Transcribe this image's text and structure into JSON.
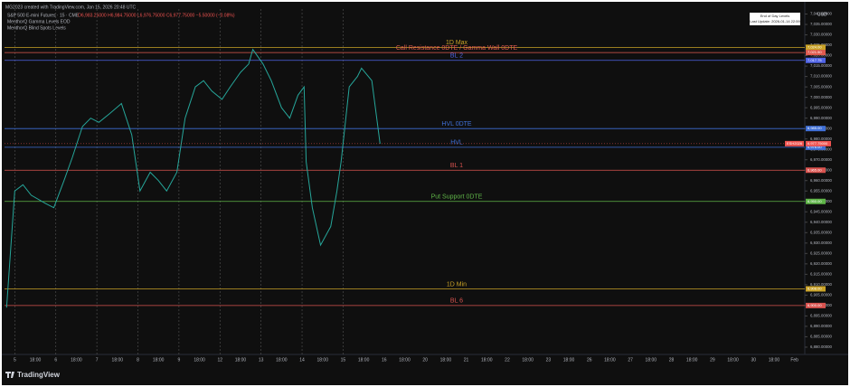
{
  "header": {
    "credit": "MG2023 created with TradingView.com, Jan 15, 2026 20:48 UTC",
    "symbol_line": "S&P 500 E-mini Futures · 15 · CME",
    "ohlc": "O6,983.25000 H6,984.75000 L6,976.75000 C6,977.75000 −5.50000 (−0.08%)",
    "indicators": [
      "MenthorQ Gamma Levels EOD",
      "MenthorQ Blind Spots Levels"
    ]
  },
  "info_box": {
    "title": "End of Day Levels",
    "update": "Last Update: 2026-01-14 22:59"
  },
  "footer": {
    "brand": "TradingView"
  },
  "chart_data": {
    "type": "line",
    "currency": "USD",
    "series": [
      {
        "name": "ESH2026",
        "color": "#26a69a",
        "x": [
          -0.4,
          0,
          0.4,
          0.8,
          1.5,
          1.9,
          2.4,
          2.8,
          3.3,
          3.7,
          4.1,
          4.6,
          5.2,
          5.7,
          6.1,
          6.6,
          7.0,
          7.4,
          7.9,
          8.3,
          8.8,
          9.2,
          9.6,
          10.1,
          10.5,
          11.0,
          11.4,
          11.6,
          12.1,
          12.5,
          13.0,
          13.4,
          13.8,
          14.1,
          14.2,
          14.5,
          14.9,
          15.4,
          15.7,
          15.9,
          16.3,
          16.7,
          16.9,
          17.4,
          17.8
        ],
        "values": [
          6899,
          6955,
          6958,
          6953,
          6949,
          6947,
          6960,
          6971,
          6986,
          6990,
          6988,
          6992,
          6997,
          6982,
          6955,
          6964,
          6960,
          6955,
          6964,
          6990,
          7005,
          7008,
          7003,
          6999,
          7005,
          7012,
          7016,
          7023,
          7016,
          7008,
          6995,
          6990,
          7001,
          7005,
          6969,
          6947,
          6929,
          6938,
          6955,
          6969,
          7005,
          7010,
          7014,
          7008,
          6977.75
        ]
      }
    ],
    "last_price": {
      "symbol": "ESH2026",
      "value": 6977.75,
      "label": "6,977.75000"
    },
    "levels": [
      {
        "name": "1D Max",
        "value": 7024,
        "label": "7,024.00",
        "color": "#c9a227"
      },
      {
        "name": "Call Resistance 0DTE / Gamma Wall 0DTE",
        "value": 7021.5,
        "label": "7,021.50",
        "color": "#e05a4f"
      },
      {
        "name": "BL 2",
        "value": 7017.75,
        "label": "7,017.75",
        "color": "#4f63e6"
      },
      {
        "name": "HVL 0DTE",
        "value": 6985,
        "label": "6,985.00",
        "color": "#3f6fd6"
      },
      {
        "name": "HVL",
        "value": 6976,
        "label": "6,976.00",
        "color": "#3f6fd6"
      },
      {
        "name": "BL 1",
        "value": 6965,
        "label": "6,965.00",
        "color": "#d9534f"
      },
      {
        "name": "Put Support 0DTE",
        "value": 6950,
        "label": "6,950.00",
        "color": "#5fb548"
      },
      {
        "name": "1D Min",
        "value": 6908,
        "label": "6,908.00",
        "color": "#c9a227"
      },
      {
        "name": "BL 6",
        "value": 6900,
        "label": "6,900.00",
        "color": "#d9534f"
      }
    ],
    "xlim": [
      -0.5,
      38.5
    ],
    "xticks": [
      {
        "value": 0,
        "label": "5"
      },
      {
        "value": 1,
        "label": "18:00"
      },
      {
        "value": 2,
        "label": "6"
      },
      {
        "value": 3,
        "label": "18:00"
      },
      {
        "value": 4,
        "label": "7"
      },
      {
        "value": 5,
        "label": "18:00"
      },
      {
        "value": 6,
        "label": "8"
      },
      {
        "value": 7,
        "label": "18:00"
      },
      {
        "value": 8,
        "label": "9"
      },
      {
        "value": 9,
        "label": "18:00"
      },
      {
        "value": 10,
        "label": "12"
      },
      {
        "value": 11,
        "label": "18:00"
      },
      {
        "value": 12,
        "label": "13"
      },
      {
        "value": 13,
        "label": "18:00"
      },
      {
        "value": 14,
        "label": "14"
      },
      {
        "value": 15,
        "label": "18:00"
      },
      {
        "value": 16,
        "label": "15"
      },
      {
        "value": 17,
        "label": "18:00"
      },
      {
        "value": 18,
        "label": "16"
      },
      {
        "value": 19,
        "label": "18:00"
      },
      {
        "value": 20,
        "label": "20"
      },
      {
        "value": 21,
        "label": "18:00"
      },
      {
        "value": 22,
        "label": "21"
      },
      {
        "value": 23,
        "label": "18:00"
      },
      {
        "value": 24,
        "label": "22"
      },
      {
        "value": 25,
        "label": "18:00"
      },
      {
        "value": 26,
        "label": "23"
      },
      {
        "value": 27,
        "label": "18:00"
      },
      {
        "value": 28,
        "label": "26"
      },
      {
        "value": 29,
        "label": "18:00"
      },
      {
        "value": 30,
        "label": "27"
      },
      {
        "value": 31,
        "label": "18:00"
      },
      {
        "value": 32,
        "label": "28"
      },
      {
        "value": 33,
        "label": "18:00"
      },
      {
        "value": 34,
        "label": "29"
      },
      {
        "value": 35,
        "label": "18:00"
      },
      {
        "value": 36,
        "label": "30"
      },
      {
        "value": 37,
        "label": "18:00"
      },
      {
        "value": 38,
        "label": "Feb"
      }
    ],
    "ylim": [
      6876.5,
      7042.4
    ],
    "yticks": [
      {
        "value": 6880,
        "label": "6,880.00000"
      },
      {
        "value": 6885,
        "label": "6,885.00000"
      },
      {
        "value": 6890,
        "label": "6,890.00000"
      },
      {
        "value": 6895,
        "label": "6,895.00000"
      },
      {
        "value": 6900,
        "label": "6,900.00000"
      },
      {
        "value": 6905,
        "label": "6,905.00000"
      },
      {
        "value": 6910,
        "label": "6,910.00000"
      },
      {
        "value": 6915,
        "label": "6,915.00000"
      },
      {
        "value": 6920,
        "label": "6,920.00000"
      },
      {
        "value": 6925,
        "label": "6,925.00000"
      },
      {
        "value": 6930,
        "label": "6,930.00000"
      },
      {
        "value": 6935,
        "label": "6,935.00000"
      },
      {
        "value": 6940,
        "label": "6,940.00000"
      },
      {
        "value": 6945,
        "label": "6,945.00000"
      },
      {
        "value": 6950,
        "label": "6,950.00000"
      },
      {
        "value": 6955,
        "label": "6,955.00000"
      },
      {
        "value": 6960,
        "label": "6,960.00000"
      },
      {
        "value": 6965,
        "label": "6,965.00000"
      },
      {
        "value": 6970,
        "label": "6,970.00000"
      },
      {
        "value": 6975,
        "label": "6,975.00000"
      },
      {
        "value": 6980,
        "label": "6,980.00000"
      },
      {
        "value": 6985,
        "label": "6,985.00000"
      },
      {
        "value": 6990,
        "label": "6,990.00000"
      },
      {
        "value": 6995,
        "label": "6,995.00000"
      },
      {
        "value": 7000,
        "label": "7,000.00000"
      },
      {
        "value": 7005,
        "label": "7,005.00000"
      },
      {
        "value": 7010,
        "label": "7,010.00000"
      },
      {
        "value": 7015,
        "label": "7,015.00000"
      },
      {
        "value": 7020,
        "label": "7,020.00000"
      },
      {
        "value": 7025,
        "label": "7,025.00000"
      },
      {
        "value": 7030,
        "label": "7,030.00000"
      },
      {
        "value": 7035,
        "label": "7,035.00000"
      },
      {
        "value": 7040,
        "label": "7,040.00000"
      }
    ]
  }
}
